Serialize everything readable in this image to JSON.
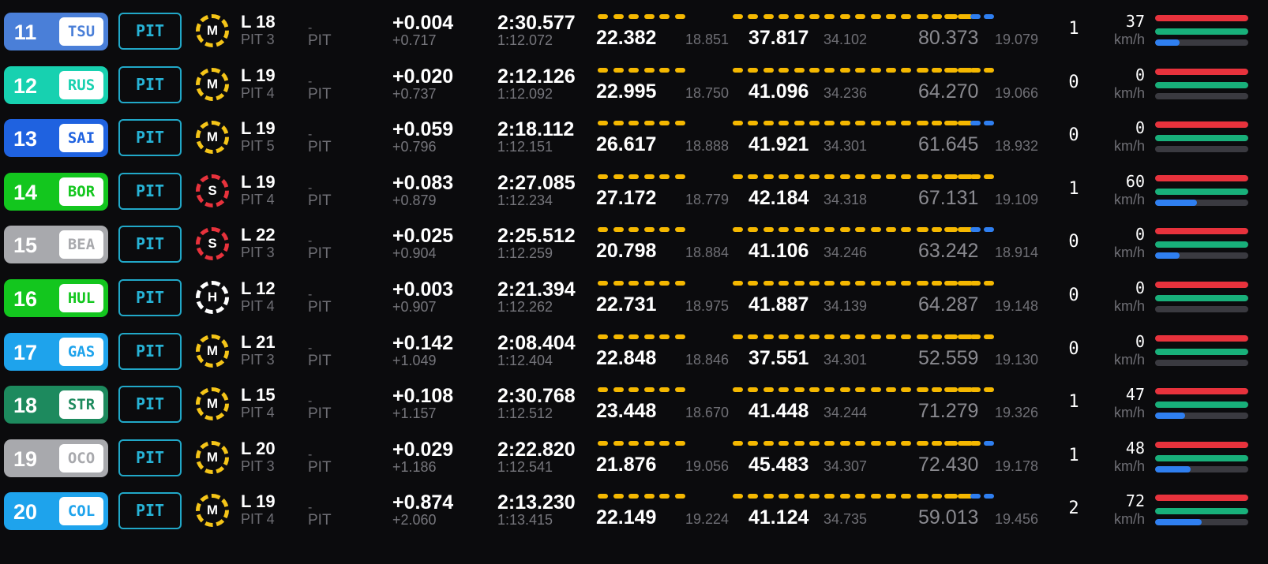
{
  "colors": {
    "status": "#27b3d6",
    "mini_yellow": "#f5b800",
    "mini_blue": "#2f7ff0",
    "bar_throttle": "#e8323c",
    "bar_brake": "#18b07a",
    "bar_gear": "#2f7ff0",
    "medium": "#f5c518",
    "soft": "#e8323c",
    "hard": "#ffffff"
  },
  "units": {
    "speed": "km/h"
  },
  "labels": {
    "pit_dash": "-",
    "pit": "PIT"
  },
  "drivers": [
    {
      "position": "11",
      "code": "TSU",
      "color": "#4a7fd8",
      "status": "PIT",
      "tyre": "M",
      "tyre_type": "medium",
      "lap": "L 18",
      "pit_count": "PIT 3",
      "gap": "+0.004",
      "interval": "+0.717",
      "last_lap": "2:30.577",
      "best_lap": "1:12.072",
      "s1": "22.382",
      "s1_best": "18.851",
      "s2": "37.817",
      "s2_best": "34.102",
      "s3": "80.373",
      "s3_best": "19.079",
      "s3_blue": 2,
      "drs": "1",
      "speed": "37",
      "bar_gear_level": 0.26
    },
    {
      "position": "12",
      "code": "RUS",
      "color": "#17d1b0",
      "status": "PIT",
      "tyre": "M",
      "tyre_type": "medium",
      "lap": "L 19",
      "pit_count": "PIT 4",
      "gap": "+0.020",
      "interval": "+0.737",
      "last_lap": "2:12.126",
      "best_lap": "1:12.092",
      "s1": "22.995",
      "s1_best": "18.750",
      "s2": "41.096",
      "s2_best": "34.236",
      "s3": "64.270",
      "s3_best": "19.066",
      "s3_blue": 0,
      "drs": "0",
      "speed": "0",
      "bar_gear_level": 0
    },
    {
      "position": "13",
      "code": "SAI",
      "color": "#1f62e0",
      "status": "PIT",
      "tyre": "M",
      "tyre_type": "medium",
      "lap": "L 19",
      "pit_count": "PIT 5",
      "gap": "+0.059",
      "interval": "+0.796",
      "last_lap": "2:18.112",
      "best_lap": "1:12.151",
      "s1": "26.617",
      "s1_best": "18.888",
      "s2": "41.921",
      "s2_best": "34.301",
      "s3": "61.645",
      "s3_best": "18.932",
      "s3_blue": 2,
      "drs": "0",
      "speed": "0",
      "bar_gear_level": 0
    },
    {
      "position": "14",
      "code": "BOR",
      "color": "#13c61e",
      "status": "PIT",
      "tyre": "S",
      "tyre_type": "soft",
      "lap": "L 19",
      "pit_count": "PIT 4",
      "gap": "+0.083",
      "interval": "+0.879",
      "last_lap": "2:27.085",
      "best_lap": "1:12.234",
      "s1": "27.172",
      "s1_best": "18.779",
      "s2": "42.184",
      "s2_best": "34.318",
      "s3": "67.131",
      "s3_best": "19.109",
      "s3_blue": 0,
      "drs": "1",
      "speed": "60",
      "bar_gear_level": 0.45
    },
    {
      "position": "15",
      "code": "BEA",
      "color": "#a8a9ad",
      "status": "PIT",
      "tyre": "S",
      "tyre_type": "soft",
      "lap": "L 22",
      "pit_count": "PIT 3",
      "gap": "+0.025",
      "interval": "+0.904",
      "last_lap": "2:25.512",
      "best_lap": "1:12.259",
      "s1": "20.798",
      "s1_best": "18.884",
      "s2": "41.106",
      "s2_best": "34.246",
      "s3": "63.242",
      "s3_best": "18.914",
      "s3_blue": 2,
      "drs": "0",
      "speed": "0",
      "bar_gear_level": 0.26
    },
    {
      "position": "16",
      "code": "HUL",
      "color": "#13c61e",
      "status": "PIT",
      "tyre": "H",
      "tyre_type": "hard",
      "lap": "L 12",
      "pit_count": "PIT 4",
      "gap": "+0.003",
      "interval": "+0.907",
      "last_lap": "2:21.394",
      "best_lap": "1:12.262",
      "s1": "22.731",
      "s1_best": "18.975",
      "s2": "41.887",
      "s2_best": "34.139",
      "s3": "64.287",
      "s3_best": "19.148",
      "s3_blue": 0,
      "drs": "0",
      "speed": "0",
      "bar_gear_level": 0
    },
    {
      "position": "17",
      "code": "GAS",
      "color": "#1ea3ec",
      "status": "PIT",
      "tyre": "M",
      "tyre_type": "medium",
      "lap": "L 21",
      "pit_count": "PIT 3",
      "gap": "+0.142",
      "interval": "+1.049",
      "last_lap": "2:08.404",
      "best_lap": "1:12.404",
      "s1": "22.848",
      "s1_best": "18.846",
      "s2": "37.551",
      "s2_best": "34.301",
      "s3": "52.559",
      "s3_best": "19.130",
      "s3_blue": 0,
      "drs": "0",
      "speed": "0",
      "bar_gear_level": 0
    },
    {
      "position": "18",
      "code": "STR",
      "color": "#1d8a5e",
      "status": "PIT",
      "tyre": "M",
      "tyre_type": "medium",
      "lap": "L 15",
      "pit_count": "PIT 4",
      "gap": "+0.108",
      "interval": "+1.157",
      "last_lap": "2:30.768",
      "best_lap": "1:12.512",
      "s1": "23.448",
      "s1_best": "18.670",
      "s2": "41.448",
      "s2_best": "34.244",
      "s3": "71.279",
      "s3_best": "19.326",
      "s3_blue": 0,
      "drs": "1",
      "speed": "47",
      "bar_gear_level": 0.32
    },
    {
      "position": "19",
      "code": "OCO",
      "color": "#a8a9ad",
      "status": "PIT",
      "tyre": "M",
      "tyre_type": "medium",
      "lap": "L 20",
      "pit_count": "PIT 3",
      "gap": "+0.029",
      "interval": "+1.186",
      "last_lap": "2:22.820",
      "best_lap": "1:12.541",
      "s1": "21.876",
      "s1_best": "19.056",
      "s2": "45.483",
      "s2_best": "34.307",
      "s3": "72.430",
      "s3_best": "19.178",
      "s3_blue": 1,
      "drs": "1",
      "speed": "48",
      "bar_gear_level": 0.38
    },
    {
      "position": "20",
      "code": "COL",
      "color": "#1ea3ec",
      "status": "PIT",
      "tyre": "M",
      "tyre_type": "medium",
      "lap": "L 19",
      "pit_count": "PIT 4",
      "gap": "+0.874",
      "interval": "+2.060",
      "last_lap": "2:13.230",
      "best_lap": "1:13.415",
      "s1": "22.149",
      "s1_best": "19.224",
      "s2": "41.124",
      "s2_best": "34.735",
      "s3": "59.013",
      "s3_best": "19.456",
      "s3_blue": 2,
      "drs": "2",
      "speed": "72",
      "bar_gear_level": 0.5
    }
  ]
}
